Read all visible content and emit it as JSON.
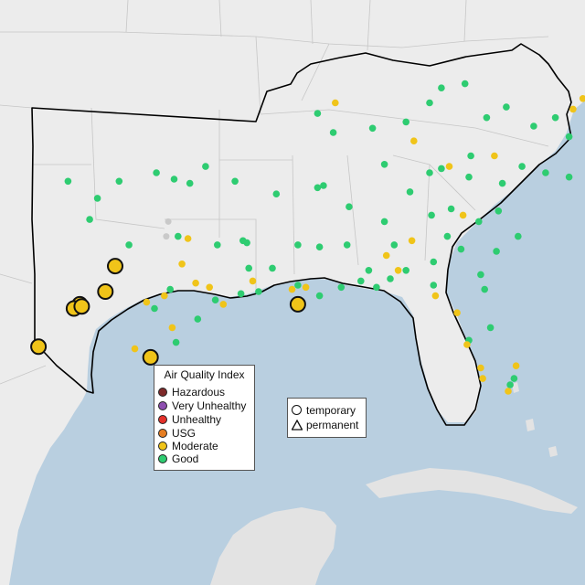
{
  "colors": {
    "water": "#b9cfe0",
    "land": "#eeeeee",
    "outside_land": "#e3e3e3",
    "border": "#000000",
    "state_lines": "#c4c4c4"
  },
  "legend": {
    "title": "Air Quality Index",
    "items": [
      {
        "label": "Hazardous",
        "color": "#7e2a2a"
      },
      {
        "label": "Very Unhealthy",
        "color": "#8e4fb0"
      },
      {
        "label": "Unhealthy",
        "color": "#e4322b"
      },
      {
        "label": "USG",
        "color": "#e67e22"
      },
      {
        "label": "Moderate",
        "color": "#f0c419"
      },
      {
        "label": "Good",
        "color": "#2ecc71"
      }
    ]
  },
  "monitor_types": {
    "temporary": "temporary",
    "permanent": "permanent"
  },
  "stations": {
    "good": [
      [
        -102.9,
        35.4
      ],
      [
        -101.4,
        34.6
      ],
      [
        -100.3,
        35.4
      ],
      [
        -98.4,
        35.8
      ],
      [
        -96.7,
        35.3
      ],
      [
        -95.9,
        36.1
      ],
      [
        -97.5,
        35.5
      ],
      [
        -94.4,
        35.4
      ],
      [
        -92.3,
        34.8
      ],
      [
        -90.2,
        35.1
      ],
      [
        -89.9,
        35.2
      ],
      [
        -88.6,
        34.2
      ],
      [
        -86.8,
        33.5
      ],
      [
        -86.3,
        32.4
      ],
      [
        -85.5,
        34.9
      ],
      [
        -84.4,
        33.8
      ],
      [
        -83.4,
        34.1
      ],
      [
        -84.5,
        35.8
      ],
      [
        -83.9,
        36.0
      ],
      [
        -82.5,
        35.6
      ],
      [
        -82.4,
        36.6
      ],
      [
        -80.8,
        35.3
      ],
      [
        -79.8,
        36.1
      ],
      [
        -78.6,
        35.8
      ],
      [
        -77.4,
        35.6
      ],
      [
        -76.3,
        36.9
      ],
      [
        -77.4,
        37.5
      ],
      [
        -78.1,
        38.4
      ],
      [
        -79.2,
        38.0
      ],
      [
        -80.6,
        38.9
      ],
      [
        -81.6,
        38.4
      ],
      [
        -82.7,
        40.0
      ],
      [
        -83.9,
        39.8
      ],
      [
        -84.5,
        39.1
      ],
      [
        -85.7,
        38.2
      ],
      [
        -86.8,
        36.2
      ],
      [
        -87.4,
        37.9
      ],
      [
        -89.4,
        37.7
      ],
      [
        -90.2,
        38.6
      ],
      [
        -81.0,
        34.0
      ],
      [
        -80.0,
        32.8
      ],
      [
        -81.1,
        32.1
      ],
      [
        -82.0,
        33.5
      ],
      [
        -84.3,
        30.5
      ],
      [
        -81.7,
        30.3
      ],
      [
        -80.2,
        26.1
      ],
      [
        -80.4,
        25.8
      ],
      [
        -82.5,
        27.9
      ],
      [
        -81.4,
        28.5
      ],
      [
        -87.2,
        30.4
      ],
      [
        -88.0,
        30.7
      ],
      [
        -89.0,
        30.4
      ],
      [
        -90.1,
        30.0
      ],
      [
        -91.2,
        30.5
      ],
      [
        -93.8,
        32.5
      ],
      [
        -93.2,
        30.2
      ],
      [
        -94.1,
        30.1
      ],
      [
        -95.4,
        29.8
      ],
      [
        -96.3,
        28.9
      ],
      [
        -97.4,
        27.8
      ],
      [
        -97.7,
        30.3
      ],
      [
        -98.5,
        29.4
      ],
      [
        -99.8,
        32.4
      ],
      [
        -101.8,
        33.6
      ],
      [
        -97.3,
        32.8
      ],
      [
        -95.3,
        32.4
      ],
      [
        -94.0,
        32.6
      ],
      [
        -93.7,
        31.3
      ],
      [
        -92.5,
        31.3
      ],
      [
        -91.2,
        32.4
      ],
      [
        -90.1,
        32.3
      ],
      [
        -88.7,
        32.4
      ],
      [
        -87.6,
        31.2
      ],
      [
        -86.5,
        30.8
      ],
      [
        -85.7,
        31.2
      ],
      [
        -84.3,
        31.6
      ],
      [
        -83.6,
        32.8
      ],
      [
        -82.9,
        32.2
      ],
      [
        -81.9,
        31.0
      ]
    ],
    "moderate": [
      [
        -89.3,
        39.1
      ],
      [
        -85.3,
        37.3
      ],
      [
        -83.5,
        36.1
      ],
      [
        -81.2,
        36.6
      ],
      [
        -77.2,
        38.8
      ],
      [
        -76.7,
        39.3
      ],
      [
        -82.8,
        33.8
      ],
      [
        -86.1,
        31.2
      ],
      [
        -85.4,
        32.6
      ],
      [
        -86.7,
        31.9
      ],
      [
        -84.2,
        30.0
      ],
      [
        -83.1,
        29.2
      ],
      [
        -82.6,
        27.7
      ],
      [
        -81.9,
        26.6
      ],
      [
        -80.1,
        26.7
      ],
      [
        -80.5,
        25.5
      ],
      [
        -81.8,
        26.1
      ],
      [
        -90.8,
        30.4
      ],
      [
        -91.5,
        30.3
      ],
      [
        -93.5,
        30.7
      ],
      [
        -95.0,
        29.6
      ],
      [
        -96.8,
        32.7
      ],
      [
        -97.1,
        31.5
      ],
      [
        -98.0,
        30.0
      ],
      [
        -97.6,
        28.5
      ],
      [
        -99.5,
        27.5
      ],
      [
        -97.5,
        26.1
      ],
      [
        -96.4,
        30.6
      ],
      [
        -95.7,
        30.4
      ],
      [
        -98.9,
        29.7
      ],
      [
        -97.8,
        26.5
      ]
    ],
    "moderate_large": [
      [
        -100.5,
        31.4
      ],
      [
        -101.0,
        30.2
      ],
      [
        -102.3,
        29.6
      ],
      [
        -102.6,
        29.4
      ],
      [
        -102.2,
        29.5
      ],
      [
        -104.4,
        27.6
      ],
      [
        -98.7,
        27.1
      ],
      [
        -91.2,
        29.6
      ]
    ],
    "gray": [
      [
        -97.8,
        33.5
      ],
      [
        -97.9,
        32.8
      ]
    ]
  }
}
